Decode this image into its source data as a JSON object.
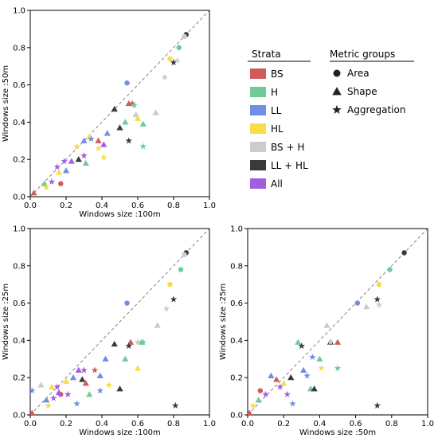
{
  "legend": {
    "strata_title": "Strata",
    "strata": [
      {
        "label": "BS",
        "color": "#cd5c5c"
      },
      {
        "label": "H",
        "color": "#6fcc96"
      },
      {
        "label": "LL",
        "color": "#6f8fe6"
      },
      {
        "label": "HL",
        "color": "#f6dd4a"
      },
      {
        "label": "BS + H",
        "color": "#cccccc"
      },
      {
        "label": "LL + HL",
        "color": "#3a3a3a"
      },
      {
        "label": "All",
        "color": "#a45de0"
      }
    ],
    "metric_title": "Metric groups",
    "metrics": [
      {
        "label": "Area",
        "marker": "circle"
      },
      {
        "label": "Shape",
        "marker": "triangle"
      },
      {
        "label": "Aggregation",
        "marker": "star"
      }
    ]
  },
  "chart_data": [
    {
      "type": "scatter",
      "xlabel": "Windows size :100m",
      "ylabel": "Windows size :50m",
      "xlim": [
        0,
        1
      ],
      "ylim": [
        0,
        1
      ],
      "xticks": [
        "0.0",
        "0.2",
        "0.4",
        "0.6",
        "0.8",
        "1.0"
      ],
      "yticks": [
        "0.0",
        "0.2",
        "0.4",
        "0.6",
        "0.8",
        "1.0"
      ],
      "diagonal_reference": true,
      "points": [
        {
          "x": 0.87,
          "y": 0.87,
          "stratum": "LL + HL",
          "metric": "Area"
        },
        {
          "x": 0.86,
          "y": 0.86,
          "stratum": "BS + H",
          "metric": "Area"
        },
        {
          "x": 0.83,
          "y": 0.8,
          "stratum": "H",
          "metric": "Area"
        },
        {
          "x": 0.78,
          "y": 0.74,
          "stratum": "HL",
          "metric": "Area"
        },
        {
          "x": 0.54,
          "y": 0.61,
          "stratum": "LL",
          "metric": "Area"
        },
        {
          "x": 0.17,
          "y": 0.07,
          "stratum": "BS",
          "metric": "Area"
        },
        {
          "x": 0.02,
          "y": 0.02,
          "stratum": "BS",
          "metric": "Shape"
        },
        {
          "x": 0.08,
          "y": 0.07,
          "stratum": "H",
          "metric": "Shape"
        },
        {
          "x": 0.16,
          "y": 0.13,
          "stratum": "HL",
          "metric": "Shape"
        },
        {
          "x": 0.2,
          "y": 0.14,
          "stratum": "LL",
          "metric": "Shape"
        },
        {
          "x": 0.23,
          "y": 0.19,
          "stratum": "All",
          "metric": "Shape"
        },
        {
          "x": 0.27,
          "y": 0.2,
          "stratum": "LL + HL",
          "metric": "Shape"
        },
        {
          "x": 0.31,
          "y": 0.18,
          "stratum": "H",
          "metric": "Shape"
        },
        {
          "x": 0.3,
          "y": 0.3,
          "stratum": "LL",
          "metric": "Shape"
        },
        {
          "x": 0.33,
          "y": 0.32,
          "stratum": "HL",
          "metric": "Shape"
        },
        {
          "x": 0.38,
          "y": 0.3,
          "stratum": "BS",
          "metric": "Shape"
        },
        {
          "x": 0.41,
          "y": 0.28,
          "stratum": "All",
          "metric": "Shape"
        },
        {
          "x": 0.43,
          "y": 0.34,
          "stratum": "LL",
          "metric": "Shape"
        },
        {
          "x": 0.47,
          "y": 0.47,
          "stratum": "LL + HL",
          "metric": "Shape"
        },
        {
          "x": 0.5,
          "y": 0.37,
          "stratum": "LL + HL",
          "metric": "Shape"
        },
        {
          "x": 0.53,
          "y": 0.4,
          "stratum": "H",
          "metric": "Shape"
        },
        {
          "x": 0.55,
          "y": 0.5,
          "stratum": "BS",
          "metric": "Shape"
        },
        {
          "x": 0.59,
          "y": 0.44,
          "stratum": "BS + H",
          "metric": "Shape"
        },
        {
          "x": 0.6,
          "y": 0.42,
          "stratum": "HL",
          "metric": "Shape"
        },
        {
          "x": 0.63,
          "y": 0.39,
          "stratum": "H",
          "metric": "Shape"
        },
        {
          "x": 0.7,
          "y": 0.45,
          "stratum": "BS + H",
          "metric": "Shape"
        },
        {
          "x": 0.09,
          "y": 0.05,
          "stratum": "HL",
          "metric": "Aggregation"
        },
        {
          "x": 0.12,
          "y": 0.08,
          "stratum": "All",
          "metric": "Aggregation"
        },
        {
          "x": 0.15,
          "y": 0.16,
          "stratum": "All",
          "metric": "Aggregation"
        },
        {
          "x": 0.19,
          "y": 0.19,
          "stratum": "All",
          "metric": "Aggregation"
        },
        {
          "x": 0.26,
          "y": 0.27,
          "stratum": "HL",
          "metric": "Aggregation"
        },
        {
          "x": 0.3,
          "y": 0.22,
          "stratum": "All",
          "metric": "Aggregation"
        },
        {
          "x": 0.34,
          "y": 0.31,
          "stratum": "LL",
          "metric": "Aggregation"
        },
        {
          "x": 0.38,
          "y": 0.26,
          "stratum": "HL",
          "metric": "Aggregation"
        },
        {
          "x": 0.41,
          "y": 0.21,
          "stratum": "HL",
          "metric": "Aggregation"
        },
        {
          "x": 0.55,
          "y": 0.3,
          "stratum": "LL + HL",
          "metric": "Aggregation"
        },
        {
          "x": 0.57,
          "y": 0.5,
          "stratum": "BS",
          "metric": "Aggregation"
        },
        {
          "x": 0.58,
          "y": 0.49,
          "stratum": "H",
          "metric": "Aggregation"
        },
        {
          "x": 0.63,
          "y": 0.27,
          "stratum": "H",
          "metric": "Aggregation"
        },
        {
          "x": 0.75,
          "y": 0.64,
          "stratum": "BS + H",
          "metric": "Aggregation"
        },
        {
          "x": 0.8,
          "y": 0.72,
          "stratum": "LL + HL",
          "metric": "Aggregation"
        },
        {
          "x": 0.82,
          "y": 0.73,
          "stratum": "BS + H",
          "metric": "Aggregation"
        }
      ]
    },
    {
      "type": "scatter",
      "xlabel": "Windows size :100m",
      "ylabel": "Windows size :25m",
      "xlim": [
        0,
        1
      ],
      "ylim": [
        0,
        1
      ],
      "xticks": [
        "0.0",
        "0.2",
        "0.4",
        "0.6",
        "0.8",
        "1.0"
      ],
      "yticks": [
        "0.0",
        "0.2",
        "0.4",
        "0.6",
        "0.8",
        "1.0"
      ],
      "diagonal_reference": true,
      "points": [
        {
          "x": 0.87,
          "y": 0.87,
          "stratum": "LL + HL",
          "metric": "Area"
        },
        {
          "x": 0.86,
          "y": 0.86,
          "stratum": "BS + H",
          "metric": "Area"
        },
        {
          "x": 0.84,
          "y": 0.78,
          "stratum": "H",
          "metric": "Area"
        },
        {
          "x": 0.78,
          "y": 0.7,
          "stratum": "HL",
          "metric": "Area"
        },
        {
          "x": 0.54,
          "y": 0.6,
          "stratum": "LL",
          "metric": "Area"
        },
        {
          "x": 0.17,
          "y": 0.11,
          "stratum": "BS",
          "metric": "Area"
        },
        {
          "x": 0.01,
          "y": 0.01,
          "stratum": "BS",
          "metric": "Shape"
        },
        {
          "x": 0.06,
          "y": 0.16,
          "stratum": "BS + H",
          "metric": "Shape"
        },
        {
          "x": 0.09,
          "y": 0.08,
          "stratum": "LL",
          "metric": "Shape"
        },
        {
          "x": 0.12,
          "y": 0.15,
          "stratum": "HL",
          "metric": "Shape"
        },
        {
          "x": 0.16,
          "y": 0.12,
          "stratum": "All",
          "metric": "Shape"
        },
        {
          "x": 0.2,
          "y": 0.18,
          "stratum": "HL",
          "metric": "Shape"
        },
        {
          "x": 0.24,
          "y": 0.2,
          "stratum": "LL",
          "metric": "Shape"
        },
        {
          "x": 0.27,
          "y": 0.24,
          "stratum": "All",
          "metric": "Shape"
        },
        {
          "x": 0.29,
          "y": 0.19,
          "stratum": "LL + HL",
          "metric": "Shape"
        },
        {
          "x": 0.31,
          "y": 0.17,
          "stratum": "BS",
          "metric": "Shape"
        },
        {
          "x": 0.33,
          "y": 0.11,
          "stratum": "H",
          "metric": "Shape"
        },
        {
          "x": 0.39,
          "y": 0.21,
          "stratum": "LL",
          "metric": "Shape"
        },
        {
          "x": 0.42,
          "y": 0.3,
          "stratum": "LL",
          "metric": "Shape"
        },
        {
          "x": 0.47,
          "y": 0.38,
          "stratum": "LL + HL",
          "metric": "Shape"
        },
        {
          "x": 0.5,
          "y": 0.14,
          "stratum": "LL + HL",
          "metric": "Shape"
        },
        {
          "x": 0.53,
          "y": 0.3,
          "stratum": "H",
          "metric": "Shape"
        },
        {
          "x": 0.56,
          "y": 0.39,
          "stratum": "BS",
          "metric": "Shape"
        },
        {
          "x": 0.6,
          "y": 0.25,
          "stratum": "HL",
          "metric": "Shape"
        },
        {
          "x": 0.62,
          "y": 0.39,
          "stratum": "H",
          "metric": "Shape"
        },
        {
          "x": 0.71,
          "y": 0.48,
          "stratum": "BS + H",
          "metric": "Shape"
        },
        {
          "x": 0.01,
          "y": 0.13,
          "stratum": "LL",
          "metric": "Aggregation"
        },
        {
          "x": 0.1,
          "y": 0.05,
          "stratum": "HL",
          "metric": "Aggregation"
        },
        {
          "x": 0.13,
          "y": 0.09,
          "stratum": "All",
          "metric": "Aggregation"
        },
        {
          "x": 0.15,
          "y": 0.15,
          "stratum": "All",
          "metric": "Aggregation"
        },
        {
          "x": 0.21,
          "y": 0.11,
          "stratum": "All",
          "metric": "Aggregation"
        },
        {
          "x": 0.26,
          "y": 0.06,
          "stratum": "LL",
          "metric": "Aggregation"
        },
        {
          "x": 0.3,
          "y": 0.24,
          "stratum": "All",
          "metric": "Aggregation"
        },
        {
          "x": 0.36,
          "y": 0.24,
          "stratum": "BS",
          "metric": "Aggregation"
        },
        {
          "x": 0.39,
          "y": 0.13,
          "stratum": "LL",
          "metric": "Aggregation"
        },
        {
          "x": 0.44,
          "y": 0.16,
          "stratum": "HL",
          "metric": "Aggregation"
        },
        {
          "x": 0.55,
          "y": 0.37,
          "stratum": "LL + HL",
          "metric": "Aggregation"
        },
        {
          "x": 0.6,
          "y": 0.39,
          "stratum": "BS + H",
          "metric": "Aggregation"
        },
        {
          "x": 0.63,
          "y": 0.39,
          "stratum": "H",
          "metric": "Aggregation"
        },
        {
          "x": 0.76,
          "y": 0.57,
          "stratum": "BS + H",
          "metric": "Aggregation"
        },
        {
          "x": 0.8,
          "y": 0.62,
          "stratum": "LL + HL",
          "metric": "Aggregation"
        },
        {
          "x": 0.81,
          "y": 0.05,
          "stratum": "LL + HL",
          "metric": "Aggregation"
        }
      ]
    },
    {
      "type": "scatter",
      "xlabel": "Windows size :50m",
      "ylabel": "Windows size :25m",
      "xlim": [
        0,
        1
      ],
      "ylim": [
        0,
        1
      ],
      "xticks": [
        "0.0",
        "0.2",
        "0.4",
        "0.6",
        "0.8",
        "1.0"
      ],
      "yticks": [
        "0.0",
        "0.2",
        "0.4",
        "0.6",
        "0.8",
        "1.0"
      ],
      "diagonal_reference": true,
      "points": [
        {
          "x": 0.87,
          "y": 0.87,
          "stratum": "LL + HL",
          "metric": "Area"
        },
        {
          "x": 0.79,
          "y": 0.78,
          "stratum": "H",
          "metric": "Area"
        },
        {
          "x": 0.73,
          "y": 0.7,
          "stratum": "HL",
          "metric": "Area"
        },
        {
          "x": 0.61,
          "y": 0.6,
          "stratum": "LL",
          "metric": "Area"
        },
        {
          "x": 0.07,
          "y": 0.13,
          "stratum": "BS",
          "metric": "Area"
        },
        {
          "x": 0.01,
          "y": 0.01,
          "stratum": "BS",
          "metric": "Shape"
        },
        {
          "x": 0.06,
          "y": 0.08,
          "stratum": "H",
          "metric": "Shape"
        },
        {
          "x": 0.13,
          "y": 0.21,
          "stratum": "LL",
          "metric": "Shape"
        },
        {
          "x": 0.16,
          "y": 0.19,
          "stratum": "BS",
          "metric": "Shape"
        },
        {
          "x": 0.2,
          "y": 0.17,
          "stratum": "HL",
          "metric": "Shape"
        },
        {
          "x": 0.24,
          "y": 0.2,
          "stratum": "LL + HL",
          "metric": "Shape"
        },
        {
          "x": 0.28,
          "y": 0.39,
          "stratum": "H",
          "metric": "Shape"
        },
        {
          "x": 0.31,
          "y": 0.24,
          "stratum": "LL",
          "metric": "Shape"
        },
        {
          "x": 0.35,
          "y": 0.14,
          "stratum": "H",
          "metric": "Shape"
        },
        {
          "x": 0.37,
          "y": 0.14,
          "stratum": "LL + HL",
          "metric": "Shape"
        },
        {
          "x": 0.4,
          "y": 0.3,
          "stratum": "H",
          "metric": "Shape"
        },
        {
          "x": 0.44,
          "y": 0.48,
          "stratum": "BS + H",
          "metric": "Shape"
        },
        {
          "x": 0.46,
          "y": 0.39,
          "stratum": "LL + HL",
          "metric": "Shape"
        },
        {
          "x": 0.5,
          "y": 0.39,
          "stratum": "BS",
          "metric": "Shape"
        },
        {
          "x": 0.66,
          "y": 0.58,
          "stratum": "BS + H",
          "metric": "Shape"
        },
        {
          "x": 0.03,
          "y": 0.05,
          "stratum": "HL",
          "metric": "Aggregation"
        },
        {
          "x": 0.1,
          "y": 0.11,
          "stratum": "All",
          "metric": "Aggregation"
        },
        {
          "x": 0.18,
          "y": 0.15,
          "stratum": "All",
          "metric": "Aggregation"
        },
        {
          "x": 0.22,
          "y": 0.11,
          "stratum": "All",
          "metric": "Aggregation"
        },
        {
          "x": 0.25,
          "y": 0.06,
          "stratum": "LL",
          "metric": "Aggregation"
        },
        {
          "x": 0.3,
          "y": 0.37,
          "stratum": "LL + HL",
          "metric": "Aggregation"
        },
        {
          "x": 0.33,
          "y": 0.21,
          "stratum": "LL",
          "metric": "Aggregation"
        },
        {
          "x": 0.36,
          "y": 0.31,
          "stratum": "LL",
          "metric": "Aggregation"
        },
        {
          "x": 0.41,
          "y": 0.25,
          "stratum": "HL",
          "metric": "Aggregation"
        },
        {
          "x": 0.46,
          "y": 0.39,
          "stratum": "BS + H",
          "metric": "Aggregation"
        },
        {
          "x": 0.5,
          "y": 0.25,
          "stratum": "H",
          "metric": "Aggregation"
        },
        {
          "x": 0.72,
          "y": 0.62,
          "stratum": "LL + HL",
          "metric": "Aggregation"
        },
        {
          "x": 0.73,
          "y": 0.59,
          "stratum": "BS + H",
          "metric": "Aggregation"
        },
        {
          "x": 0.72,
          "y": 0.05,
          "stratum": "LL + HL",
          "metric": "Aggregation"
        }
      ]
    }
  ]
}
